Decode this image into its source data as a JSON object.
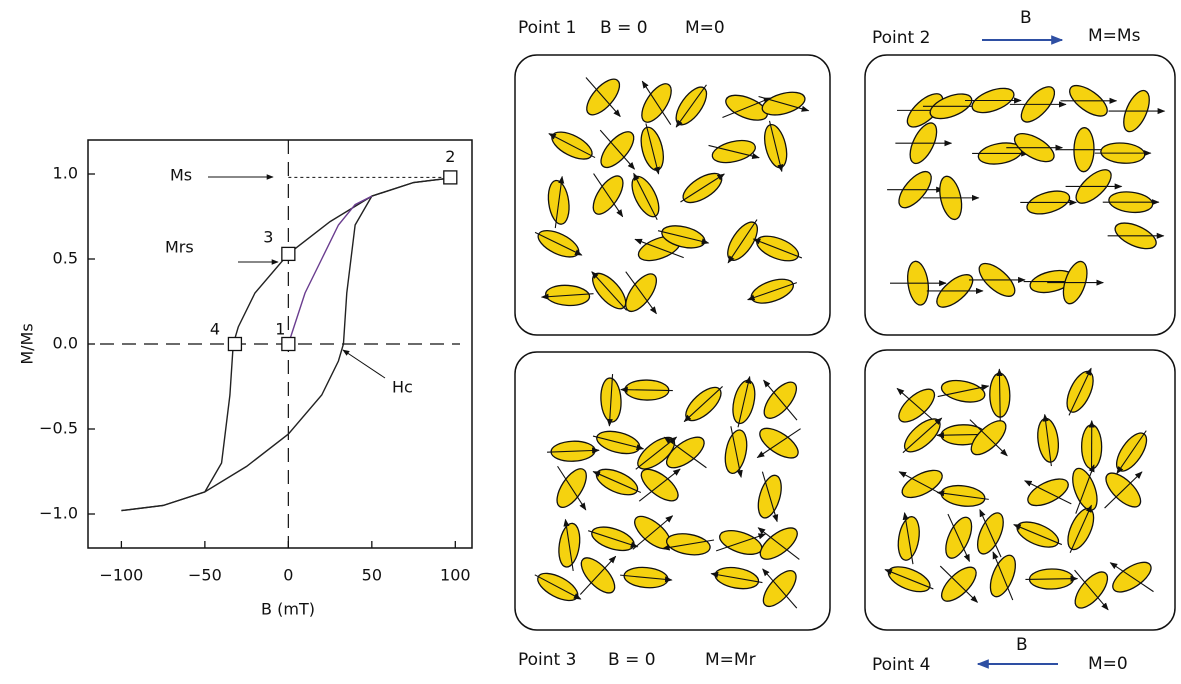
{
  "chart_data": {
    "type": "line",
    "xlabel": "B (mT)",
    "ylabel": "M/Ms",
    "xlim": [
      -120,
      110
    ],
    "ylim": [
      -1.2,
      1.2
    ],
    "xticks": [
      {
        "value": -100,
        "label": "−100"
      },
      {
        "value": -50,
        "label": "−50"
      },
      0,
      50,
      100
    ],
    "yticks": [
      {
        "value": -1,
        "label": "−1.0"
      },
      {
        "value": -0.5,
        "label": "−0.5"
      },
      {
        "value": 0,
        "label": "0.0"
      },
      0.5,
      {
        "value": 1,
        "label": "1.0"
      }
    ],
    "series": [
      {
        "color": "#222222",
        "x": [
          100,
          75,
          50,
          25,
          0,
          -20,
          -30,
          -33,
          -35,
          -40,
          -50,
          -75,
          -100
        ],
        "values": [
          0.98,
          0.95,
          0.87,
          0.72,
          0.53,
          0.3,
          0.1,
          0,
          -0.3,
          -0.7,
          -0.87,
          -0.95,
          -0.98
        ]
      },
      {
        "color": "#222222",
        "x": [
          -100,
          -75,
          -50,
          -25,
          0,
          20,
          30,
          33,
          35,
          40,
          50,
          75,
          100
        ],
        "values": [
          -0.98,
          -0.95,
          -0.87,
          -0.72,
          -0.53,
          -0.3,
          -0.1,
          0,
          0.3,
          0.7,
          0.87,
          0.95,
          0.98
        ]
      },
      {
        "color": "#6a3d8f",
        "x": [
          0,
          5,
          10,
          20,
          30,
          40,
          50
        ],
        "values": [
          0,
          0.15,
          0.3,
          0.5,
          0.7,
          0.82,
          0.87
        ]
      }
    ],
    "points": [
      {
        "label": "1",
        "x": 0,
        "y": 0
      },
      {
        "label": "2",
        "x": 97,
        "y": 0.98
      },
      {
        "label": "3",
        "x": 0,
        "y": 0.53
      },
      {
        "label": "4",
        "x": -32,
        "y": 0
      }
    ],
    "annotations": [
      "Ms",
      "Mrs",
      "Hc"
    ]
  },
  "panels": [
    {
      "label": "Point 1",
      "field": "B = 0",
      "magnetization": "M=0"
    },
    {
      "label": "Point 2",
      "field": "B",
      "magnetization": "M=Ms"
    },
    {
      "label": "Point 3",
      "field": "B = 0",
      "magnetization": "M=Mr"
    },
    {
      "label": "Point 4",
      "field": "B",
      "magnetization": "M=0"
    }
  ]
}
